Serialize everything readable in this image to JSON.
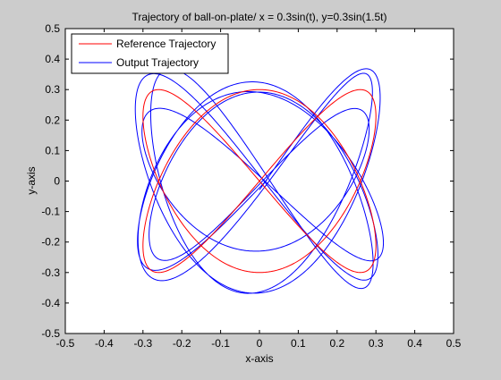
{
  "chart_data": {
    "type": "line",
    "title": "Trajectory of ball-on-plate/ x = 0.3sin(t), y=0.3sin(1.5t)",
    "xlabel": "x-axis",
    "ylabel": "y-axis",
    "xlim": [
      -0.5,
      0.5
    ],
    "ylim": [
      -0.5,
      0.5
    ],
    "xticks": [
      -0.5,
      -0.4,
      -0.3,
      -0.2,
      -0.1,
      0,
      0.1,
      0.2,
      0.3,
      0.4,
      0.5
    ],
    "yticks": [
      -0.5,
      -0.4,
      -0.3,
      -0.2,
      -0.1,
      0,
      0.1,
      0.2,
      0.3,
      0.4,
      0.5
    ],
    "xtick_labels": [
      "-0.5",
      "-0.4",
      "-0.3",
      "-0.2",
      "-0.1",
      "0",
      "0.1",
      "0.2",
      "0.3",
      "0.4",
      "0.5"
    ],
    "ytick_labels": [
      "-0.5",
      "-0.4",
      "-0.3",
      "-0.2",
      "-0.1",
      "0",
      "0.1",
      "0.2",
      "0.3",
      "0.4",
      "0.5"
    ],
    "grid": false,
    "legend_position": "top-left",
    "series": [
      {
        "name": "Reference Trajectory",
        "color": "#ff0000",
        "x_formula": "0.3*sin(t)",
        "y_formula": "0.3*sin(1.5*t)",
        "t_range": [
          0,
          12.566
        ],
        "samples": 500
      },
      {
        "name": "Output Trajectory",
        "color": "#0000ff",
        "x_formula": "(0.3+0.02*sin(0.37*t))*sin(t+0.06*sin(0.21*t))",
        "y_formula": "(0.3+0.07*sin(0.23*t+1.1))*sin(1.5*t+0.12*sin(0.19*t)-0.08)",
        "t_range": [
          0,
          37.7
        ],
        "samples": 2400
      }
    ]
  }
}
